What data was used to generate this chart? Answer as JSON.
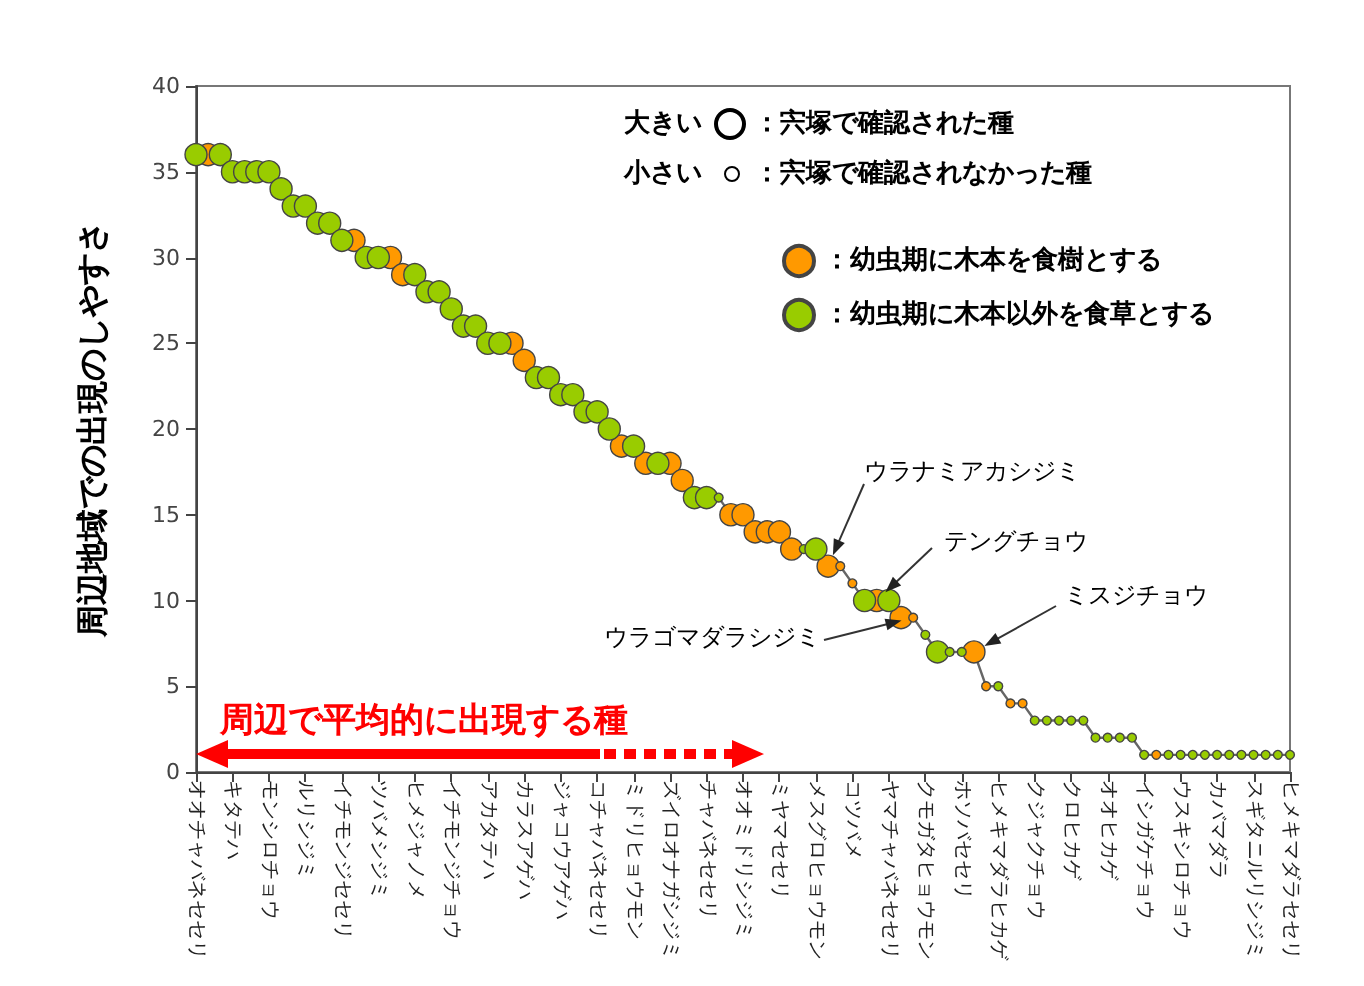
{
  "chart_data": {
    "type": "bubble",
    "ylabel": "周辺地域での出現のしやすさ",
    "categories": [
      "オオチャバネセセリ",
      null,
      null,
      "キタテハ",
      null,
      null,
      "モンシロチョウ",
      null,
      null,
      "ルリシジミ",
      null,
      null,
      "イチモンジセセリ",
      null,
      null,
      "ツバメシジミ",
      null,
      null,
      "ヒメジャノメ",
      null,
      null,
      "イチモンジチョウ",
      null,
      null,
      "アカタテハ",
      null,
      null,
      "カラスアゲハ",
      null,
      null,
      "ジャコウアゲハ",
      null,
      null,
      "コチャバネセセリ",
      null,
      null,
      "ミドリヒョウモン",
      null,
      null,
      "ズイロオナガシジミ",
      null,
      null,
      "チャバネセセリ",
      null,
      null,
      "オオミドリシジミ",
      null,
      null,
      "ミヤマセセリ",
      null,
      null,
      "メスグロヒョウモン",
      null,
      null,
      "コツバメ",
      null,
      null,
      "ヤマチャバネセセリ",
      null,
      null,
      "クモガタヒョウモン",
      null,
      null,
      "ホソバセセリ",
      null,
      null,
      "ヒメキマダラヒカゲ",
      null,
      null,
      "クジャクチョウ",
      null,
      null,
      "クロヒカゲ",
      null,
      null,
      "オオヒカゲ",
      null,
      null,
      "イシガケチョウ",
      null,
      null,
      "ウスキシロチョウ",
      null,
      null,
      "カバマダラ",
      null,
      null,
      "スギタニルリシジミ",
      null,
      null,
      "ヒメキマダラセセリ"
    ],
    "ylim": [
      0,
      40
    ],
    "yticks": [
      0,
      5,
      10,
      15,
      20,
      25,
      30,
      35,
      40
    ],
    "grid": false,
    "legend": "top right",
    "series": [
      {
        "type": "line",
        "color": "#666666",
        "marker": "none",
        "values": [
          36,
          36,
          36,
          35,
          35,
          35,
          35,
          34,
          33,
          33,
          32,
          32,
          31,
          31,
          30,
          30,
          30,
          29,
          29,
          28,
          28,
          27,
          26,
          26,
          25,
          25,
          25,
          24,
          23,
          23,
          22,
          22,
          21,
          21,
          20,
          19,
          19,
          18,
          18,
          18,
          17,
          16,
          16,
          16,
          15,
          15,
          14,
          14,
          14,
          13,
          13,
          13,
          12,
          12,
          11,
          10,
          10,
          10,
          9,
          9,
          8,
          7,
          7,
          7,
          7,
          5,
          5,
          4,
          4,
          3,
          3,
          3,
          3,
          3,
          2,
          2,
          2,
          2,
          1,
          1,
          1,
          1,
          1,
          1,
          1,
          1,
          1,
          1,
          1,
          1,
          1
        ]
      },
      {
        "type": "bubble",
        "name": "：幼虫期に木本を食樹とする",
        "color": "#ff9900",
        "marker": "circle",
        "values": [
          null,
          36,
          null,
          null,
          null,
          null,
          null,
          null,
          null,
          null,
          null,
          null,
          null,
          31,
          null,
          null,
          30,
          29,
          null,
          null,
          null,
          null,
          null,
          null,
          null,
          null,
          25,
          24,
          null,
          null,
          null,
          null,
          null,
          null,
          null,
          19,
          null,
          18,
          null,
          18,
          17,
          null,
          null,
          null,
          15,
          15,
          14,
          14,
          14,
          13,
          null,
          null,
          12,
          12,
          11,
          null,
          10,
          null,
          9,
          9,
          null,
          null,
          null,
          null,
          7,
          5,
          null,
          4,
          4,
          null,
          null,
          null,
          null,
          null,
          null,
          null,
          null,
          null,
          null,
          1,
          null,
          null,
          null,
          null,
          null,
          null,
          null,
          null,
          null,
          null,
          null
        ],
        "sizes": [
          null,
          1,
          null,
          null,
          null,
          null,
          null,
          null,
          null,
          null,
          null,
          null,
          null,
          1,
          null,
          null,
          1,
          1,
          null,
          null,
          null,
          null,
          null,
          null,
          null,
          null,
          1,
          1,
          null,
          null,
          null,
          null,
          null,
          null,
          null,
          1,
          null,
          1,
          null,
          1,
          1,
          null,
          null,
          null,
          1,
          1,
          1,
          1,
          1,
          1,
          null,
          null,
          1,
          0.16,
          0.16,
          null,
          1,
          null,
          1,
          0.16,
          null,
          null,
          null,
          null,
          1,
          0.16,
          null,
          0.16,
          0.16,
          null,
          null,
          null,
          null,
          null,
          null,
          null,
          null,
          null,
          null,
          0.16,
          null,
          null,
          null,
          null,
          null,
          null,
          null,
          null,
          null,
          null,
          null
        ]
      },
      {
        "type": "bubble",
        "name": "：幼虫期に木本以外を食草とする",
        "color": "#99cc00",
        "marker": "circle",
        "values": [
          36,
          null,
          36,
          35,
          35,
          35,
          35,
          34,
          33,
          33,
          32,
          32,
          31,
          null,
          30,
          30,
          null,
          null,
          29,
          28,
          28,
          27,
          26,
          26,
          25,
          25,
          null,
          null,
          23,
          23,
          22,
          22,
          21,
          21,
          20,
          null,
          19,
          null,
          18,
          null,
          null,
          16,
          16,
          16,
          null,
          null,
          null,
          null,
          null,
          null,
          13,
          13,
          null,
          null,
          null,
          10,
          null,
          10,
          null,
          null,
          8,
          7,
          7,
          7,
          null,
          null,
          5,
          null,
          null,
          3,
          3,
          3,
          3,
          3,
          2,
          2,
          2,
          2,
          1,
          null,
          1,
          1,
          1,
          1,
          1,
          1,
          1,
          1,
          1,
          1,
          1
        ],
        "sizes": [
          1,
          null,
          1,
          1,
          1,
          1,
          1,
          1,
          1,
          1,
          1,
          1,
          1,
          null,
          1,
          1,
          null,
          null,
          1,
          1,
          1,
          1,
          1,
          1,
          1,
          1,
          null,
          null,
          1,
          1,
          1,
          1,
          1,
          1,
          1,
          null,
          1,
          null,
          1,
          null,
          null,
          1,
          1,
          0.16,
          null,
          null,
          null,
          null,
          null,
          null,
          0.16,
          1,
          null,
          null,
          null,
          1,
          null,
          1,
          null,
          null,
          0.16,
          1,
          0.16,
          0.16,
          null,
          null,
          0.16,
          null,
          null,
          0.16,
          0.16,
          0.16,
          0.16,
          0.16,
          0.16,
          0.16,
          0.16,
          0.16,
          0.16,
          null,
          0.16,
          0.16,
          0.16,
          0.16,
          0.16,
          0.16,
          0.16,
          0.16,
          0.16,
          0.16,
          0.16
        ]
      }
    ],
    "annotations": [
      "大きい",
      "：宍塚で確認された種",
      "小さい",
      "：宍塚で確認されなかった種",
      "周辺で平均的に出現する種",
      "ウラナミアカシジミ",
      "テングチョウ",
      "ウラゴマダラシジミ",
      "ミスジチョウ"
    ]
  }
}
